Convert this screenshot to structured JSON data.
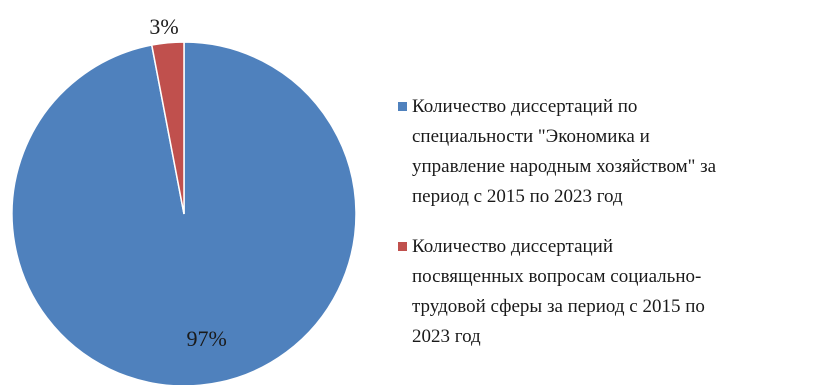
{
  "chart_data": {
    "type": "pie",
    "title": "",
    "categories": [
      "Количество диссертаций по специальности \"Экономика и управление народным хозяйством\" за период с 2015 по 2023 год",
      "Количество диссертаций посвященных вопросам социально-трудовой сферы за период с 2015 по 2023 год"
    ],
    "values": [
      97,
      3
    ],
    "labels": [
      "97%",
      "3%"
    ],
    "colors": [
      "#4f81bd",
      "#c0504d"
    ],
    "legend_position": "right",
    "legend": [
      {
        "lines": [
          "Количество диссертаций по",
          "специальности \"Экономика и",
          "управление народным хозяйством\" за",
          "период с 2015 по 2023 год"
        ]
      },
      {
        "lines": [
          "Количество диссертаций",
          "посвященных вопросам социально-",
          "трудовой сферы за период с 2015 по",
          "2023 год"
        ]
      }
    ]
  }
}
